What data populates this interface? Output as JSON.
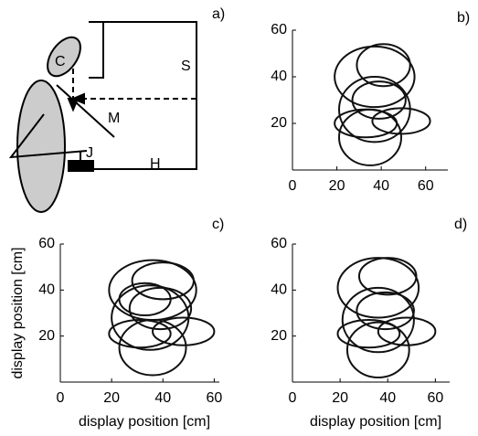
{
  "diagram": {
    "label": "a)",
    "parts": {
      "eye": "C",
      "screen": "S",
      "mirror": "M",
      "joystick": "J",
      "hand": "H"
    }
  },
  "chart_data": [
    {
      "type": "ellipse",
      "label": "b)",
      "xlim": [
        0,
        70
      ],
      "ylim": [
        0,
        60
      ],
      "xticks": [
        0,
        20,
        40,
        60
      ],
      "yticks": [
        20,
        40,
        60
      ],
      "ellipses": [
        [
          37,
          40,
          18,
          13
        ],
        [
          41,
          45,
          12,
          9
        ],
        [
          37,
          26,
          16,
          14
        ],
        [
          33,
          20,
          14,
          6
        ],
        [
          49,
          21,
          13,
          5.5
        ],
        [
          35,
          14,
          14,
          12
        ],
        [
          39,
          30,
          12,
          8
        ]
      ]
    },
    {
      "type": "ellipse",
      "label": "c)",
      "xlim": [
        0,
        62
      ],
      "ylim": [
        0,
        60
      ],
      "xticks": [
        0,
        20,
        40,
        60
      ],
      "yticks": [
        20,
        40,
        60
      ],
      "xlabel": "display position [cm]",
      "ylabel": "display position [cm]",
      "ellipses": [
        [
          36,
          40,
          17,
          13
        ],
        [
          40,
          44,
          12,
          8
        ],
        [
          35,
          28,
          15,
          14
        ],
        [
          31,
          21,
          12,
          6
        ],
        [
          48,
          22,
          12,
          6
        ],
        [
          36,
          15,
          13,
          12
        ],
        [
          39,
          32,
          12,
          9
        ],
        [
          33,
          36,
          10,
          7
        ]
      ]
    },
    {
      "type": "ellipse",
      "label": "d)",
      "xlim": [
        0,
        66
      ],
      "ylim": [
        0,
        60
      ],
      "xticks": [
        0,
        20,
        40,
        60
      ],
      "yticks": [
        20,
        40,
        60
      ],
      "xlabel": "display position [cm]",
      "ellipses": [
        [
          36,
          41,
          17,
          13
        ],
        [
          40,
          46,
          12,
          8
        ],
        [
          36,
          27,
          15,
          14
        ],
        [
          32,
          21,
          13,
          6
        ],
        [
          48,
          22,
          12,
          6
        ],
        [
          36,
          14,
          13,
          12
        ],
        [
          39,
          31,
          12,
          8
        ]
      ]
    }
  ]
}
